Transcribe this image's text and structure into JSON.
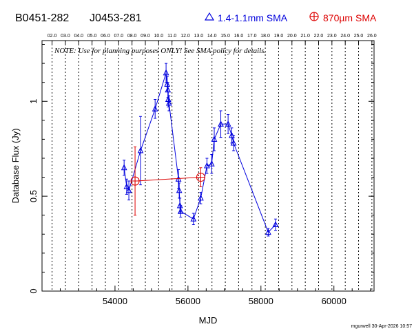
{
  "header": {
    "source_name": "B0451-282",
    "source_alias": "J0453-281",
    "legend_blue": "1.4-1.1mm SMA",
    "legend_red": "870µm SMA"
  },
  "note": "NOTE: Use for planning purposes ONLY! See SMA policy for details.",
  "footer": "mgurwell 30-Apr-2026 10:57",
  "colors": {
    "blue": "#0000dd",
    "red": "#dd0000",
    "axis": "#000000"
  },
  "chart_data": {
    "type": "scatter",
    "xlabel": "MJD",
    "ylabel": "Database Flux (Jy)",
    "xlim": [
      52000,
      61100
    ],
    "ylim": [
      0,
      1.32
    ],
    "x_ticks": [
      54000,
      56000,
      58000,
      60000
    ],
    "y_ticks": [
      0,
      0.5,
      1
    ],
    "y_tick_labels": [
      "0",
      "0.5",
      "1"
    ],
    "top_axis_labels": [
      "02.0",
      "03.0",
      "04.0",
      "05.0",
      "06.0",
      "07.0",
      "08.0",
      "09.0",
      "10.0",
      "11.0",
      "12.0",
      "13.0",
      "14.0",
      "15.0",
      "16.0",
      "17.0",
      "18.0",
      "19.0",
      "20.0",
      "21.0",
      "22.0",
      "23.0",
      "24.0",
      "25.0",
      "26.0"
    ],
    "top_axis_start_mjd": 52275,
    "top_axis_step_days": 365.25,
    "series": [
      {
        "name": "1.4-1.1mm SMA",
        "color": "#0000dd",
        "marker": "triangle",
        "connected": true,
        "points": [
          {
            "x": 54250,
            "y": 0.65,
            "err": 0.04
          },
          {
            "x": 54320,
            "y": 0.55,
            "err": 0.04
          },
          {
            "x": 54380,
            "y": 0.53,
            "err": 0.05
          },
          {
            "x": 54700,
            "y": 0.74,
            "err": 0.18
          },
          {
            "x": 55100,
            "y": 0.96,
            "err": 0.05
          },
          {
            "x": 55400,
            "y": 1.15,
            "err": 0.05
          },
          {
            "x": 55430,
            "y": 1.09,
            "err": 0.04
          },
          {
            "x": 55450,
            "y": 1.06,
            "err": 0.04
          },
          {
            "x": 55460,
            "y": 1.01,
            "err": 0.04
          },
          {
            "x": 55480,
            "y": 0.99,
            "err": 0.04
          },
          {
            "x": 55740,
            "y": 0.59,
            "err": 0.05
          },
          {
            "x": 55760,
            "y": 0.53,
            "err": 0.04
          },
          {
            "x": 55780,
            "y": 0.45,
            "err": 0.04
          },
          {
            "x": 55800,
            "y": 0.42,
            "err": 0.03
          },
          {
            "x": 56150,
            "y": 0.38,
            "err": 0.03
          },
          {
            "x": 56350,
            "y": 0.49,
            "err": 0.03
          },
          {
            "x": 56520,
            "y": 0.66,
            "err": 0.04
          },
          {
            "x": 56650,
            "y": 0.67,
            "err": 0.05
          },
          {
            "x": 56720,
            "y": 0.8,
            "err": 0.06
          },
          {
            "x": 56900,
            "y": 0.88,
            "err": 0.07
          },
          {
            "x": 57100,
            "y": 0.88,
            "err": 0.05
          },
          {
            "x": 57200,
            "y": 0.82,
            "err": 0.04
          },
          {
            "x": 57250,
            "y": 0.78,
            "err": 0.04
          },
          {
            "x": 58200,
            "y": 0.31,
            "err": 0.02
          },
          {
            "x": 58400,
            "y": 0.35,
            "err": 0.03
          }
        ]
      },
      {
        "name": "870µm SMA",
        "color": "#dd0000",
        "marker": "circle-plus",
        "connected": true,
        "points": [
          {
            "x": 54550,
            "y": 0.58,
            "err": 0.18
          },
          {
            "x": 56350,
            "y": 0.6,
            "err": 0.05
          }
        ]
      }
    ]
  }
}
